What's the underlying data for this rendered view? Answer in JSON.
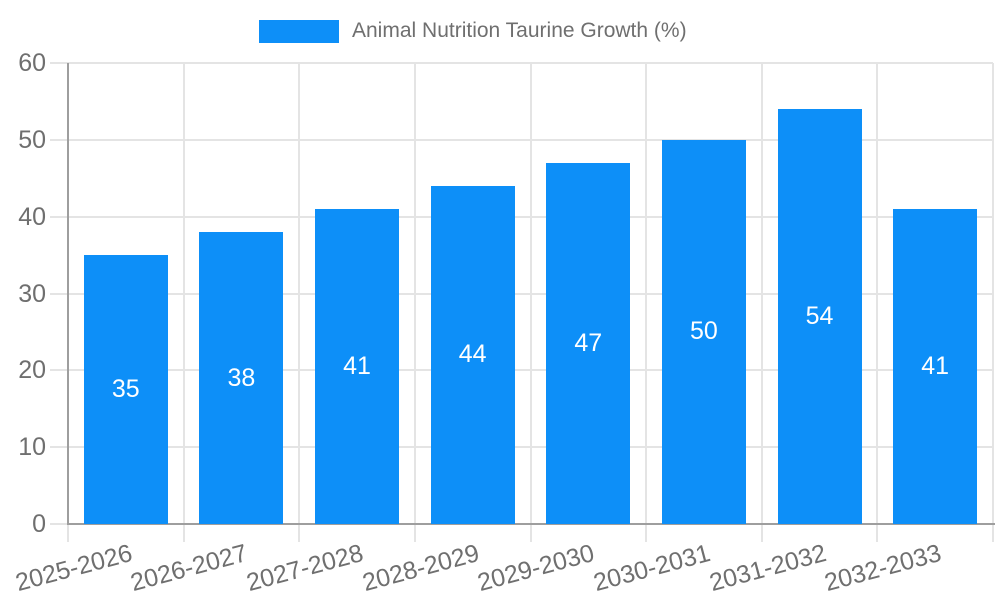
{
  "legend": {
    "label": "Animal Nutrition Taurine Growth (%)"
  },
  "chart_data": {
    "type": "bar",
    "title": "",
    "series_name": "Animal Nutrition Taurine Growth (%)",
    "categories": [
      "2025-2026",
      "2026-2027",
      "2027-2028",
      "2028-2029",
      "2029-2030",
      "2030-2031",
      "2031-2032",
      "2032-2033"
    ],
    "values": [
      35,
      38,
      41,
      44,
      47,
      50,
      54,
      41
    ],
    "xlabel": "",
    "ylabel": "",
    "ylim": [
      0,
      60
    ],
    "yticks": [
      0,
      10,
      20,
      30,
      40,
      50,
      60
    ],
    "grid": "on",
    "legend_position": "top-center",
    "bar_label_position": "center",
    "bar_color": "#0d8ff8",
    "bar_label_color": "#ffffff",
    "grid_color": "#e4e4e4",
    "axis_color": "#9e9e9e",
    "tick_label_color": "#6f6f6f"
  }
}
